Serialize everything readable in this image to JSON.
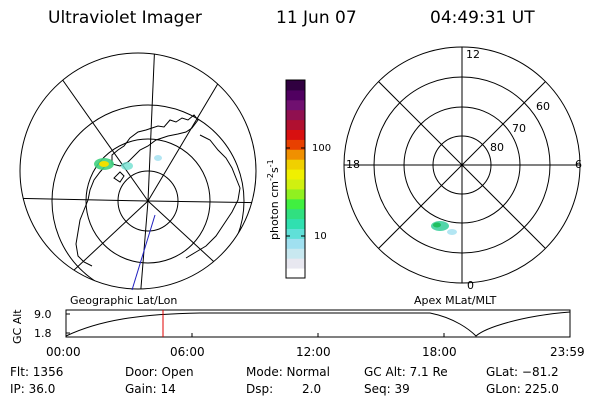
{
  "header": {
    "instrument": "Ultraviolet Imager",
    "date": "11 Jun 07",
    "time": "04:49:31 UT"
  },
  "colorbar": {
    "label": "photon cm",
    "label_exp1": "-2",
    "label_mid": "s",
    "label_exp2": "-1",
    "tick_100": "100",
    "tick_10": "10",
    "colors": [
      "#ffffff",
      "#e8e8f0",
      "#c8e8f0",
      "#a0e0f0",
      "#60e0d8",
      "#30e0b0",
      "#30e080",
      "#40f040",
      "#90f020",
      "#d0f010",
      "#f0f000",
      "#f0d000",
      "#f09000",
      "#e84000",
      "#d81010",
      "#b01030",
      "#901050",
      "#701070",
      "#500060",
      "#300040"
    ]
  },
  "panels": {
    "geographic_label": "Geographic Lat/Lon",
    "apex_label": "Apex MLat/MLT",
    "mlt_labels": {
      "top": "12",
      "bottom": "0",
      "left": "18",
      "right": "6"
    },
    "lat_labels": [
      "60",
      "70",
      "80"
    ]
  },
  "altitude_plot": {
    "ylabel": "GC Alt",
    "ytick_high": "9.0",
    "ytick_low": "1.8",
    "xticks": [
      "00:00",
      "06:00",
      "12:00",
      "18:00",
      "23:59"
    ]
  },
  "footer": {
    "flt": "Flt: 1356",
    "ip": "IP: 36.0",
    "door": "Door: Open",
    "gain": "Gain: 14",
    "mode": "Mode: Normal",
    "dsp_label": "Dsp:",
    "dsp_value": "2.0",
    "gc_alt": "GC Alt: 7.1 Re",
    "seq": "Seq: 39",
    "glat": "GLat: −81.2",
    "glon": "GLon: 225.0"
  }
}
